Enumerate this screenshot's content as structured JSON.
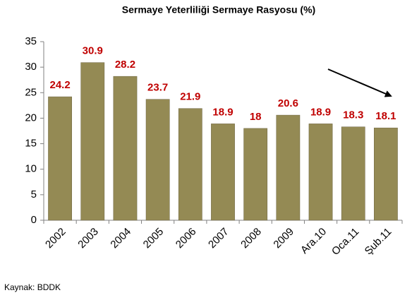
{
  "chart_data": {
    "type": "bar",
    "title": "Sermaye Yeterliliği Sermaye Rasyosu (%)",
    "categories": [
      "2002",
      "2003",
      "2004",
      "2005",
      "2006",
      "2007",
      "2008",
      "2009",
      "Ara.10",
      "Oca.11",
      "Şub.11"
    ],
    "values": [
      24.2,
      30.9,
      28.2,
      23.7,
      21.9,
      18.9,
      18,
      20.6,
      18.9,
      18.3,
      18.1
    ],
    "color": "#948a54",
    "label_color": "#c00000",
    "ylim": [
      0,
      35
    ],
    "yticks": [
      0,
      5,
      10,
      15,
      20,
      25,
      30,
      35
    ],
    "grid": false,
    "source": "Kaynak: BDDK"
  }
}
